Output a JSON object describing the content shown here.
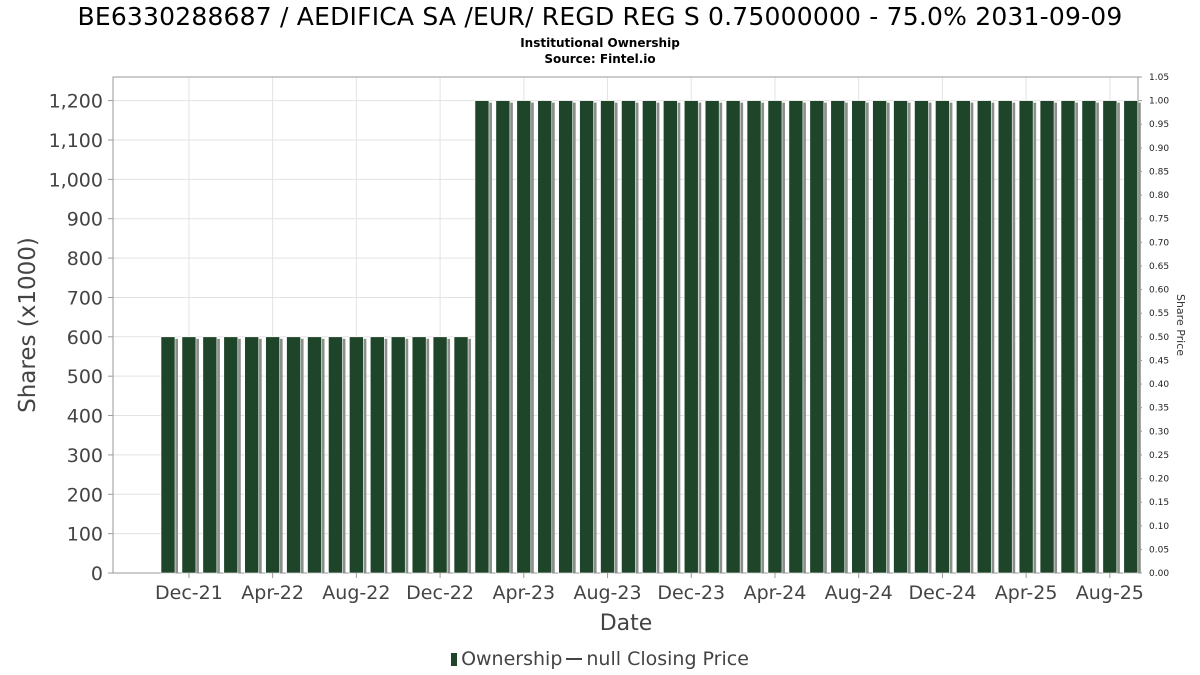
{
  "title": "BE6330288687 / AEDIFICA SA /EUR/ REGD REG S 0.75000000 - 75.0% 2031-09-09",
  "subtitle": "Institutional Ownership",
  "source": "Source: Fintel.io",
  "legend": {
    "ownership": "Ownership",
    "price": "null Closing Price"
  },
  "colors": {
    "bar": "#1e4529",
    "bar_shadow": "#8a8f8a",
    "grid": "#e3e3e3"
  },
  "chart_data": {
    "type": "bar",
    "xlabel": "Date",
    "ylabel": "Shares (x1000)",
    "y2label": "Share Price",
    "ylim": [
      0,
      1260
    ],
    "y2lim": [
      0,
      1.05
    ],
    "yticks": [
      "0",
      "100",
      "200",
      "300",
      "400",
      "500",
      "600",
      "700",
      "800",
      "900",
      "1,000",
      "1,100",
      "1,200"
    ],
    "y2ticks": [
      "0.00",
      "0.05",
      "0.10",
      "0.15",
      "0.20",
      "0.25",
      "0.30",
      "0.35",
      "0.40",
      "0.45",
      "0.50",
      "0.55",
      "0.60",
      "0.65",
      "0.70",
      "0.75",
      "0.80",
      "0.85",
      "0.90",
      "0.95",
      "1.00",
      "1.05"
    ],
    "xticks": [
      "Dec-21",
      "Apr-22",
      "Aug-22",
      "Dec-22",
      "Apr-23",
      "Aug-23",
      "Dec-23",
      "Apr-24",
      "Aug-24",
      "Dec-24",
      "Apr-25",
      "Aug-25"
    ],
    "x": [
      "Nov-21",
      "Dec-21",
      "Jan-22",
      "Feb-22",
      "Mar-22",
      "Apr-22",
      "May-22",
      "Jun-22",
      "Jul-22",
      "Aug-22",
      "Sep-22",
      "Oct-22",
      "Nov-22",
      "Dec-22",
      "Jan-23",
      "Feb-23",
      "Mar-23",
      "Apr-23",
      "May-23",
      "Jun-23",
      "Jul-23",
      "Aug-23",
      "Sep-23",
      "Oct-23",
      "Nov-23",
      "Dec-23",
      "Jan-24",
      "Feb-24",
      "Mar-24",
      "Apr-24",
      "May-24",
      "Jun-24",
      "Jul-24",
      "Aug-24",
      "Sep-24",
      "Oct-24",
      "Nov-24",
      "Dec-24",
      "Jan-25",
      "Feb-25",
      "Mar-25",
      "Apr-25",
      "May-25",
      "Jun-25",
      "Jul-25",
      "Aug-25",
      "Sep-25"
    ],
    "series": [
      {
        "name": "Ownership",
        "values": [
          600,
          600,
          600,
          600,
          600,
          600,
          600,
          600,
          600,
          600,
          600,
          600,
          600,
          600,
          600,
          1200,
          1200,
          1200,
          1200,
          1200,
          1200,
          1200,
          1200,
          1200,
          1200,
          1200,
          1200,
          1200,
          1200,
          1200,
          1200,
          1200,
          1200,
          1200,
          1200,
          1200,
          1200,
          1200,
          1200,
          1200,
          1200,
          1200,
          1200,
          1200,
          1200,
          1200,
          1200
        ]
      }
    ],
    "grid": true
  }
}
